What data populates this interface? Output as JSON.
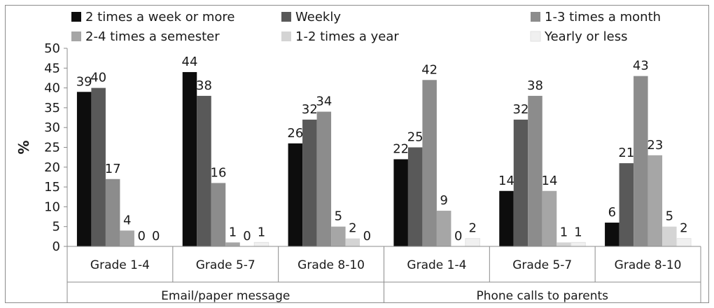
{
  "chart_data": {
    "type": "bar",
    "ylabel": "%",
    "ylim": [
      0,
      50
    ],
    "ytick_step": 5,
    "groups": [
      {
        "name": "Email/paper message",
        "categories": [
          "Grade 1-4",
          "Grade 5-7",
          "Grade 8-10"
        ]
      },
      {
        "name": "Phone calls to parents",
        "categories": [
          "Grade 1-4",
          "Grade 5-7",
          "Grade 8-10"
        ]
      }
    ],
    "series": [
      {
        "name": "2 times a week or more",
        "color": "#0d0d0d",
        "values": [
          39,
          44,
          26,
          22,
          14,
          6
        ]
      },
      {
        "name": "Weekly",
        "color": "#595959",
        "values": [
          40,
          38,
          32,
          25,
          32,
          21
        ]
      },
      {
        "name": "1-3 times a month",
        "color": "#8c8c8c",
        "values": [
          17,
          16,
          34,
          42,
          38,
          43
        ]
      },
      {
        "name": "2-4 times a semester",
        "color": "#a6a6a6",
        "values": [
          4,
          1,
          5,
          9,
          14,
          23
        ]
      },
      {
        "name": "1-2 times a year",
        "color": "#d4d4d4",
        "values": [
          0,
          0,
          2,
          0,
          1,
          5
        ]
      },
      {
        "name": "Yearly or less",
        "color": "#f0f0f0",
        "values": [
          0,
          1,
          0,
          2,
          1,
          2
        ]
      }
    ],
    "legend_position": "top",
    "grid": false
  }
}
